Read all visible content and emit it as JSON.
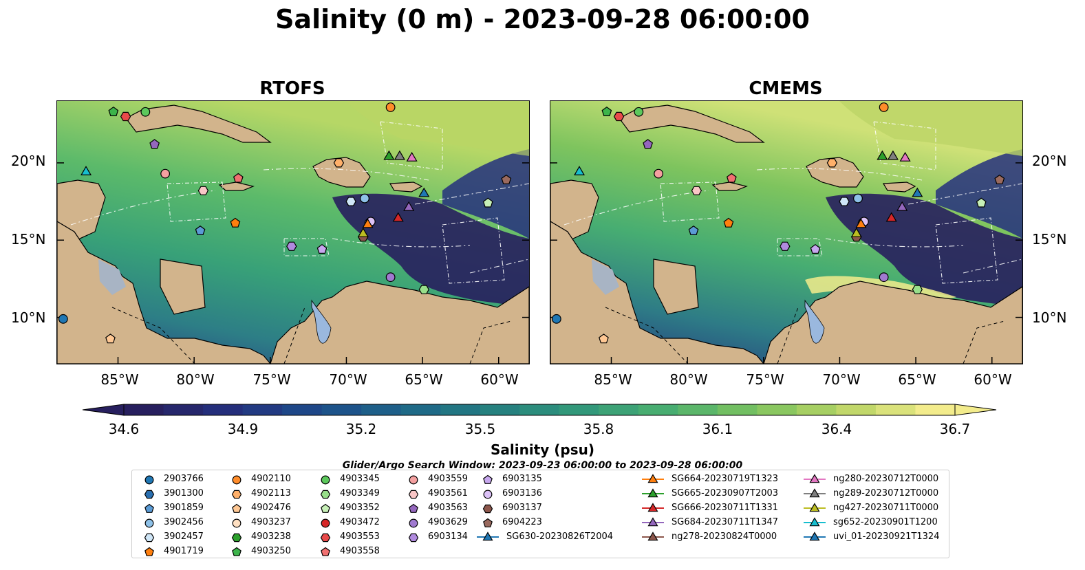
{
  "title": "Salinity (0 m) - 2023-09-28 06:00:00",
  "panels": [
    {
      "title": "RTOFS"
    },
    {
      "title": "CMEMS"
    }
  ],
  "lat_labels": [
    "20°N",
    "15°N",
    "10°N"
  ],
  "lon_labels": [
    "85°W",
    "80°W",
    "75°W",
    "70°W",
    "65°W",
    "60°W"
  ],
  "colorbar": {
    "label": "Salinity (psu)",
    "ticks": [
      "34.6",
      "34.9",
      "35.2",
      "35.5",
      "35.8",
      "36.1",
      "36.4",
      "36.7"
    ]
  },
  "search_window": "Glider/Argo Search Window: 2023-09-23 06:00:00 to 2023-09-28 06:00:00",
  "chart_data": {
    "type": "heatmap",
    "title": "Salinity (0 m) - 2023-09-28 06:00:00",
    "subplots": [
      "RTOFS",
      "CMEMS"
    ],
    "x_range": [
      -89,
      -58
    ],
    "y_range": [
      7,
      24
    ],
    "x_ticks": [
      -85,
      -80,
      -75,
      -70,
      -65,
      -60
    ],
    "y_ticks": [
      10,
      15,
      20
    ],
    "colorbar_range": [
      34.6,
      36.7
    ],
    "colorbar_ticks": [
      34.6,
      34.9,
      35.2,
      35.5,
      35.8,
      36.1,
      36.4,
      36.7
    ],
    "colorbar_label": "Salinity (psu)",
    "colors": [
      "#271f5e",
      "#24307e",
      "#1d4d8a",
      "#1e6688",
      "#25807f",
      "#33997a",
      "#4cb06f",
      "#7ec45e",
      "#bbd566",
      "#f3ec8c"
    ],
    "legend_placement": "bottom",
    "markers": [
      {
        "name": "2903766",
        "shape": "circle",
        "color": "#1f77b4",
        "lon": -88.6,
        "lat": 9.9
      },
      {
        "name": "3901300",
        "shape": "hexagon",
        "color": "#2a6fb0"
      },
      {
        "name": "3901859",
        "shape": "pentagon",
        "color": "#5b9bd5",
        "lon": -79.6,
        "lat": 15.6
      },
      {
        "name": "3902456",
        "shape": "circle",
        "color": "#8ec1e8",
        "lon": -68.8,
        "lat": 17.7
      },
      {
        "name": "3902457",
        "shape": "hexagon",
        "color": "#cfe6f7",
        "lon": -69.7,
        "lat": 17.5
      },
      {
        "name": "4901719",
        "shape": "pentagon",
        "color": "#ff7f0e",
        "lon": -77.3,
        "lat": 16.1
      },
      {
        "name": "4902110",
        "shape": "circle",
        "color": "#ff8c2a",
        "lon": -67.1,
        "lat": 23.6
      },
      {
        "name": "4902113",
        "shape": "hexagon",
        "color": "#ffb06a",
        "lon": -70.5,
        "lat": 20.0
      },
      {
        "name": "4902476",
        "shape": "pentagon",
        "color": "#ffc894",
        "lon": -85.5,
        "lat": 8.6
      },
      {
        "name": "4903237",
        "shape": "circle",
        "color": "#ffe0c2",
        "lon": -68.5,
        "lat": 16.1
      },
      {
        "name": "4903238",
        "shape": "hexagon",
        "color": "#2ca02c"
      },
      {
        "name": "4903250",
        "shape": "pentagon",
        "color": "#3cb44b",
        "lon": -85.3,
        "lat": 23.3
      },
      {
        "name": "4903345",
        "shape": "circle",
        "color": "#5cc85c",
        "lon": -83.2,
        "lat": 23.3
      },
      {
        "name": "4903349",
        "shape": "hexagon",
        "color": "#98df8a",
        "lon": -64.9,
        "lat": 11.8
      },
      {
        "name": "4903352",
        "shape": "pentagon",
        "color": "#c7f0b7",
        "lon": -60.7,
        "lat": 17.4
      },
      {
        "name": "4903472",
        "shape": "circle",
        "color": "#d62728"
      },
      {
        "name": "4903553",
        "shape": "hexagon",
        "color": "#e84a4a",
        "lon": -84.5,
        "lat": 23.0
      },
      {
        "name": "4903558",
        "shape": "pentagon",
        "color": "#f07070",
        "lon": -77.1,
        "lat": 19.0
      },
      {
        "name": "4903559",
        "shape": "circle",
        "color": "#f4a0a0",
        "lon": -81.9,
        "lat": 19.3
      },
      {
        "name": "4903561",
        "shape": "hexagon",
        "color": "#f9c6c6",
        "lon": -79.4,
        "lat": 18.2
      },
      {
        "name": "4903563",
        "shape": "pentagon",
        "color": "#9467bd",
        "lon": -82.6,
        "lat": 21.2
      },
      {
        "name": "4903629",
        "shape": "circle",
        "color": "#a07ad0",
        "lon": -67.1,
        "lat": 12.6
      },
      {
        "name": "6903134",
        "shape": "hexagon",
        "color": "#b08ade",
        "lon": -73.6,
        "lat": 14.6
      },
      {
        "name": "6903135",
        "shape": "pentagon",
        "color": "#c7a7ee",
        "lon": -71.6,
        "lat": 14.4
      },
      {
        "name": "6903136",
        "shape": "circle",
        "color": "#dcc2f7",
        "lon": -68.4,
        "lat": 16.2
      },
      {
        "name": "6903137",
        "shape": "hexagon",
        "color": "#8c564b",
        "lon": -68.9,
        "lat": 15.2
      },
      {
        "name": "6904223",
        "shape": "pentagon",
        "color": "#9a6a5e",
        "lon": -59.5,
        "lat": 18.9
      },
      {
        "name": "SG630-20230826T2004",
        "shape": "triangle",
        "color": "#1f77b4"
      },
      {
        "name": "SG664-20230719T1323",
        "shape": "triangle",
        "color": "#ff7f0e",
        "lon": -68.6,
        "lat": 16.0
      },
      {
        "name": "SG665-20230907T2003",
        "shape": "triangle",
        "color": "#2ca02c",
        "lon": -67.2,
        "lat": 20.4
      },
      {
        "name": "SG666-20230711T1331",
        "shape": "triangle",
        "color": "#d62728",
        "lon": -66.6,
        "lat": 16.4
      },
      {
        "name": "SG684-20230711T1347",
        "shape": "triangle",
        "color": "#9467bd",
        "lon": -65.9,
        "lat": 17.1
      },
      {
        "name": "ng278-20230824T0000",
        "shape": "triangle",
        "color": "#8c564b"
      },
      {
        "name": "ng280-20230712T0000",
        "shape": "triangle",
        "color": "#e377c2",
        "lon": -65.7,
        "lat": 20.3
      },
      {
        "name": "ng289-20230712T0000",
        "shape": "triangle",
        "color": "#7f7f7f",
        "lon": -66.5,
        "lat": 20.4
      },
      {
        "name": "ng427-20230711T0000",
        "shape": "triangle",
        "color": "#bcbd22",
        "lon": -68.9,
        "lat": 15.4
      },
      {
        "name": "sg652-20230901T1200",
        "shape": "triangle",
        "color": "#17becf",
        "lon": -87.1,
        "lat": 19.4
      },
      {
        "name": "uvi_01-20230921T1324",
        "shape": "triangle",
        "color": "#1f77b4",
        "lon": -64.9,
        "lat": 18.0
      }
    ]
  }
}
